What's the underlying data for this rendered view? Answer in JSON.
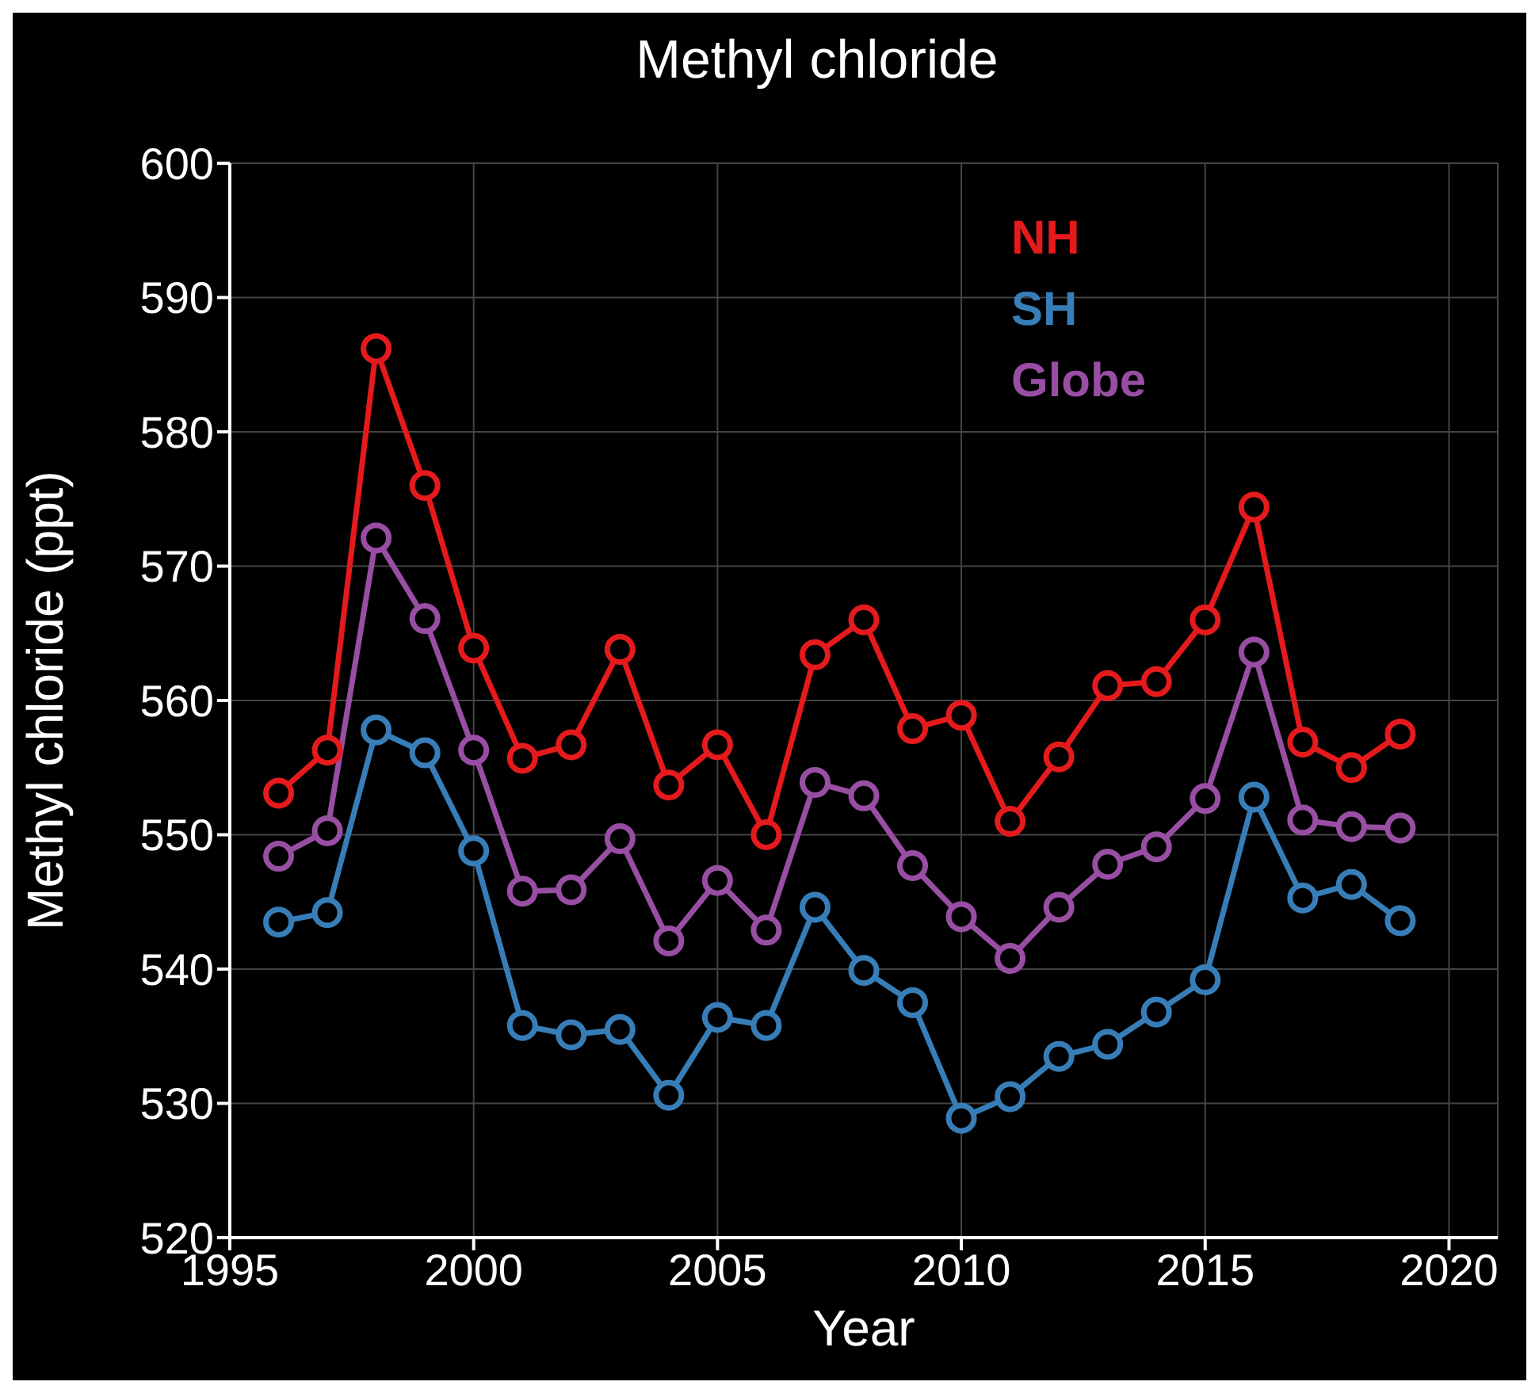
{
  "chart_data": {
    "type": "line",
    "title": "Methyl chloride",
    "xlabel": "Year",
    "ylabel": "Methyl chloride (ppt)",
    "x": [
      1996,
      1997,
      1998,
      1999,
      2000,
      2001,
      2002,
      2003,
      2004,
      2005,
      2006,
      2007,
      2008,
      2009,
      2010,
      2011,
      2012,
      2013,
      2014,
      2015,
      2016,
      2017,
      2018,
      2019
    ],
    "series": [
      {
        "name": "NH",
        "color": "#e41a1c",
        "values": [
          553.1,
          556.3,
          586.2,
          576.0,
          563.9,
          555.7,
          556.7,
          563.8,
          553.7,
          556.7,
          550.0,
          563.4,
          566.0,
          557.9,
          558.9,
          551.0,
          555.8,
          561.1,
          561.4,
          566.0,
          574.4,
          556.9,
          555.0,
          557.5
        ]
      },
      {
        "name": "SH",
        "color": "#377eb8",
        "values": [
          543.5,
          544.2,
          557.8,
          556.1,
          548.8,
          535.8,
          535.1,
          535.5,
          530.6,
          536.4,
          535.8,
          544.6,
          539.9,
          537.5,
          528.9,
          530.5,
          533.5,
          534.4,
          536.8,
          539.2,
          552.8,
          545.3,
          546.3,
          543.6
        ]
      },
      {
        "name": "Globe",
        "color": "#984ea3",
        "values": [
          548.4,
          550.3,
          572.1,
          566.1,
          556.3,
          545.8,
          545.9,
          549.7,
          542.1,
          546.6,
          542.9,
          553.9,
          552.9,
          547.7,
          543.9,
          540.8,
          544.6,
          547.8,
          549.1,
          552.7,
          563.6,
          551.1,
          550.6,
          550.5
        ]
      }
    ],
    "xlim": [
      1995,
      2021
    ],
    "xticks": [
      1995,
      2000,
      2005,
      2010,
      2015,
      2020
    ],
    "ylim": [
      520,
      600
    ],
    "yticks": [
      520,
      530,
      540,
      550,
      560,
      570,
      580,
      590,
      600
    ],
    "grid": true,
    "legend": "top",
    "marker": "circle",
    "line_style": "solid"
  }
}
